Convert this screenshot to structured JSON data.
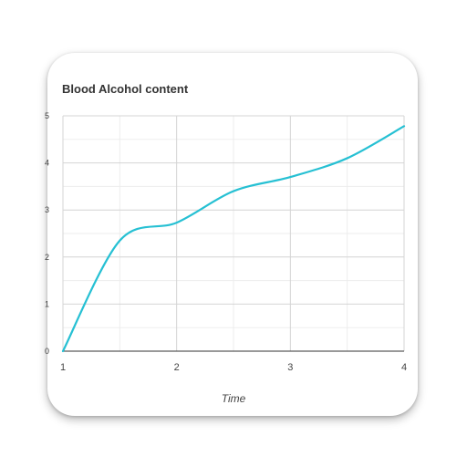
{
  "chart_data": {
    "type": "line",
    "title": "Blood Alcohol content",
    "xlabel": "Time",
    "ylabel": "",
    "x": [
      1,
      1.5,
      2,
      2.5,
      3,
      3.5,
      4
    ],
    "series": [
      {
        "values": [
          0,
          2.35,
          2.73,
          3.4,
          3.7,
          4.1,
          4.78
        ]
      }
    ],
    "x_ticks": [
      "1",
      "2",
      "3",
      "4"
    ],
    "y_ticks": [
      "0",
      "1",
      "2",
      "3",
      "4",
      "5"
    ],
    "xlim": [
      1,
      4
    ],
    "ylim": [
      0,
      5
    ],
    "grid": true,
    "line_color": "#26c0d3"
  }
}
